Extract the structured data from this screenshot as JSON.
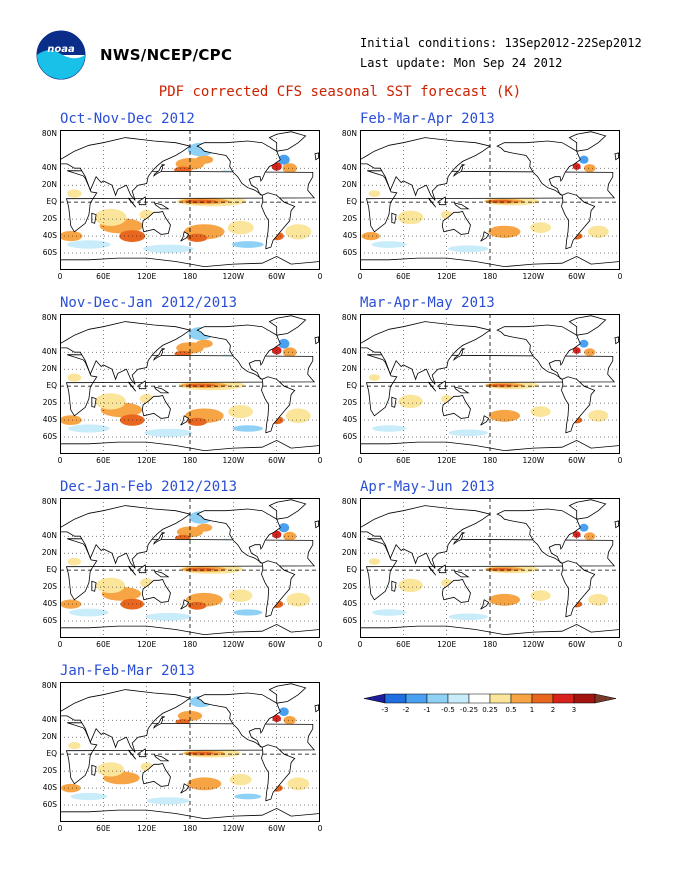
{
  "header": {
    "logo_text": "noaa",
    "agency": "NWS/NCEP/CPC",
    "initial_conditions": "Initial conditions: 13Sep2012-22Sep2012",
    "last_update": "Last update: Mon Sep 24 2012"
  },
  "figure_title": "PDF corrected CFS seasonal SST forecast (K)",
  "axes": {
    "lat_labels": [
      "80N",
      "40N",
      "20N",
      "EQ",
      "20S",
      "40S",
      "60S"
    ],
    "lon_labels": [
      "0",
      "60E",
      "120E",
      "180",
      "120W",
      "60W",
      "0"
    ]
  },
  "panels": [
    {
      "title": "Oct-Nov-Dec 2012",
      "warmth": 1.0
    },
    {
      "title": "Feb-Mar-Apr 2013",
      "warmth": 0.55
    },
    {
      "title": "Nov-Dec-Jan 2012/2013",
      "warmth": 0.9
    },
    {
      "title": "Mar-Apr-May 2013",
      "warmth": 0.5
    },
    {
      "title": "Dec-Jan-Feb 2012/2013",
      "warmth": 0.8
    },
    {
      "title": "Apr-May-Jun 2013",
      "warmth": 0.5
    },
    {
      "title": "Jan-Feb-Mar 2013",
      "warmth": 0.65
    }
  ],
  "colorbar": {
    "labels": [
      "-3",
      "-2",
      "-1",
      "-0.5",
      "-0.25",
      "0.25",
      "0.5",
      "1",
      "2",
      "3"
    ],
    "colors": [
      "#1e1e9c",
      "#1f6fe0",
      "#4aa0f0",
      "#8fd0f5",
      "#c8ecfa",
      "#ffffff",
      "#fbe59a",
      "#f7a445",
      "#e8661e",
      "#d9221c",
      "#a3140f",
      "#7a3a2a"
    ]
  },
  "colors": {
    "warm1": "#fbe59a",
    "warm2": "#f7a445",
    "warm3": "#e8661e",
    "warm4": "#d9221c",
    "cool1": "#c8ecfa",
    "cool2": "#8fd0f5",
    "cool3": "#4aa0f0"
  }
}
